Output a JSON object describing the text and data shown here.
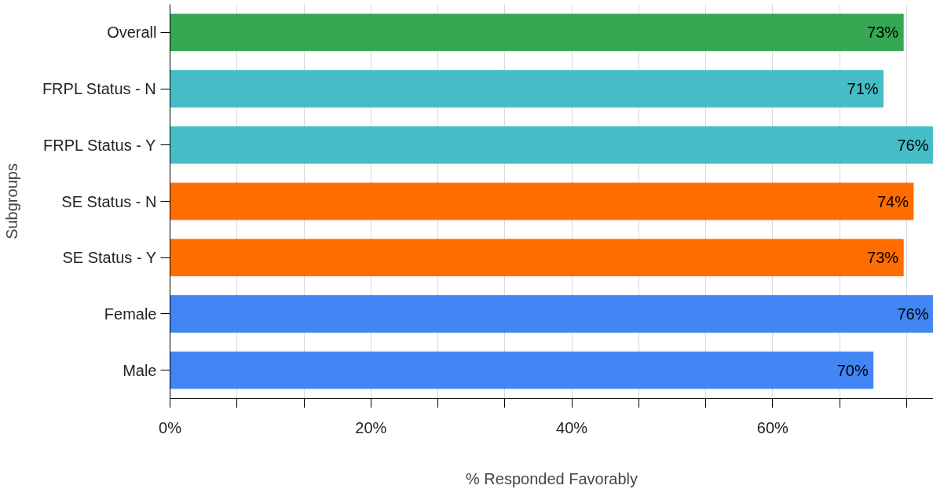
{
  "chart_data": {
    "type": "bar",
    "orientation": "horizontal",
    "xlabel": "% Responded Favorably",
    "ylabel": "Subgroups",
    "categories": [
      "Overall",
      "FRPL Status - N",
      "FRPL Status - Y",
      "SE Status - N",
      "SE Status - Y",
      "Female",
      "Male"
    ],
    "values": [
      73,
      71,
      76,
      74,
      73,
      76,
      70
    ],
    "colors": [
      "#34a853",
      "#46bdc6",
      "#46bdc6",
      "#ff6d01",
      "#ff6d01",
      "#4285f4",
      "#4285f4"
    ],
    "value_labels": [
      "73%",
      "71%",
      "76%",
      "74%",
      "73%",
      "76%",
      "70%"
    ],
    "xlim": [
      0,
      76
    ],
    "xticks": [
      {
        "value": 0,
        "label": "0%"
      },
      {
        "value": 6.667,
        "label": null
      },
      {
        "value": 13.333,
        "label": null
      },
      {
        "value": 20,
        "label": "20%"
      },
      {
        "value": 26.667,
        "label": null
      },
      {
        "value": 33.333,
        "label": null
      },
      {
        "value": 40,
        "label": "40%"
      },
      {
        "value": 46.667,
        "label": null
      },
      {
        "value": 53.333,
        "label": null
      },
      {
        "value": 60,
        "label": "60%"
      },
      {
        "value": 66.667,
        "label": null
      },
      {
        "value": 73.333,
        "label": null
      }
    ],
    "grid": "x"
  }
}
